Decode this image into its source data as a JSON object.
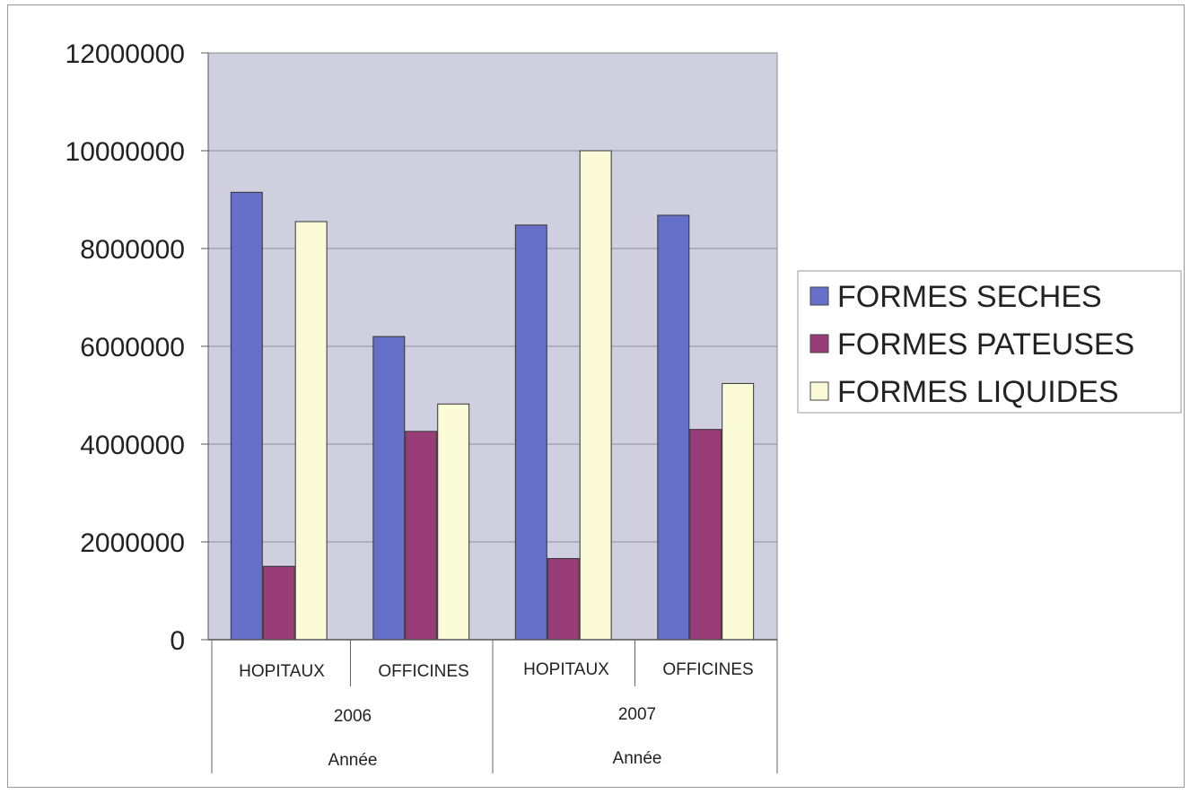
{
  "chart_data": {
    "type": "bar",
    "categories": [
      "HOPITAUX",
      "OFFICINES",
      "HOPITAUX",
      "OFFICINES"
    ],
    "groups": [
      {
        "label": "2006",
        "sublabel": "Année",
        "categories": [
          0,
          1
        ]
      },
      {
        "label": "2007",
        "sublabel": "Année",
        "categories": [
          2,
          3
        ]
      }
    ],
    "series": [
      {
        "name": "FORMES SECHES",
        "color": "#6670c8",
        "values": [
          9150000,
          6200000,
          8480000,
          8680000
        ]
      },
      {
        "name": "FORMES PATEUSES",
        "color": "#993d78",
        "values": [
          1500000,
          4260000,
          1660000,
          4300000
        ]
      },
      {
        "name": "FORMES LIQUIDES",
        "color": "#fbfbd8",
        "values": [
          8550000,
          4820000,
          10000000,
          5240000
        ]
      }
    ],
    "y_ticks": [
      "0",
      "2000000",
      "4000000",
      "6000000",
      "8000000",
      "10000000",
      "12000000"
    ],
    "ylim": [
      0,
      12000000
    ],
    "grid": true,
    "plot_background": "#cfcfe0",
    "legend_position": "right"
  }
}
